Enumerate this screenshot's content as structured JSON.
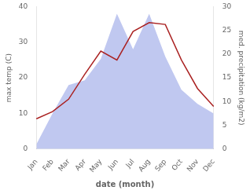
{
  "chart_data": {
    "type": "line",
    "categories": [
      "Jan",
      "Feb",
      "Mar",
      "Apr",
      "May",
      "Jun",
      "Jul",
      "Aug",
      "Sep",
      "Oct",
      "Nov",
      "Dec"
    ],
    "series": [
      {
        "type": "area",
        "color": "#c0c8f0",
        "axis": "y2",
        "values": [
          1.0,
          7.5,
          13.5,
          14.5,
          19.0,
          28.5,
          21.0,
          28.5,
          19.5,
          12.5,
          9.5,
          7.5
        ]
      },
      {
        "type": "line",
        "color": "#aa2222",
        "values": [
          8.5,
          10.5,
          14.0,
          21.0,
          27.5,
          25.0,
          33.0,
          35.5,
          35.0,
          25.0,
          17.0,
          12.0
        ]
      }
    ],
    "xlabel": "date (month)",
    "ylabel": "max temp (C)",
    "y2label": "med. precipitation (kg/m2)",
    "ylim": [
      0,
      40
    ],
    "yticks": [
      0,
      10,
      20,
      30,
      40
    ],
    "y2lim": [
      0,
      30
    ],
    "y2ticks": [
      0,
      5,
      10,
      15,
      20,
      25,
      30
    ],
    "grid": false
  }
}
